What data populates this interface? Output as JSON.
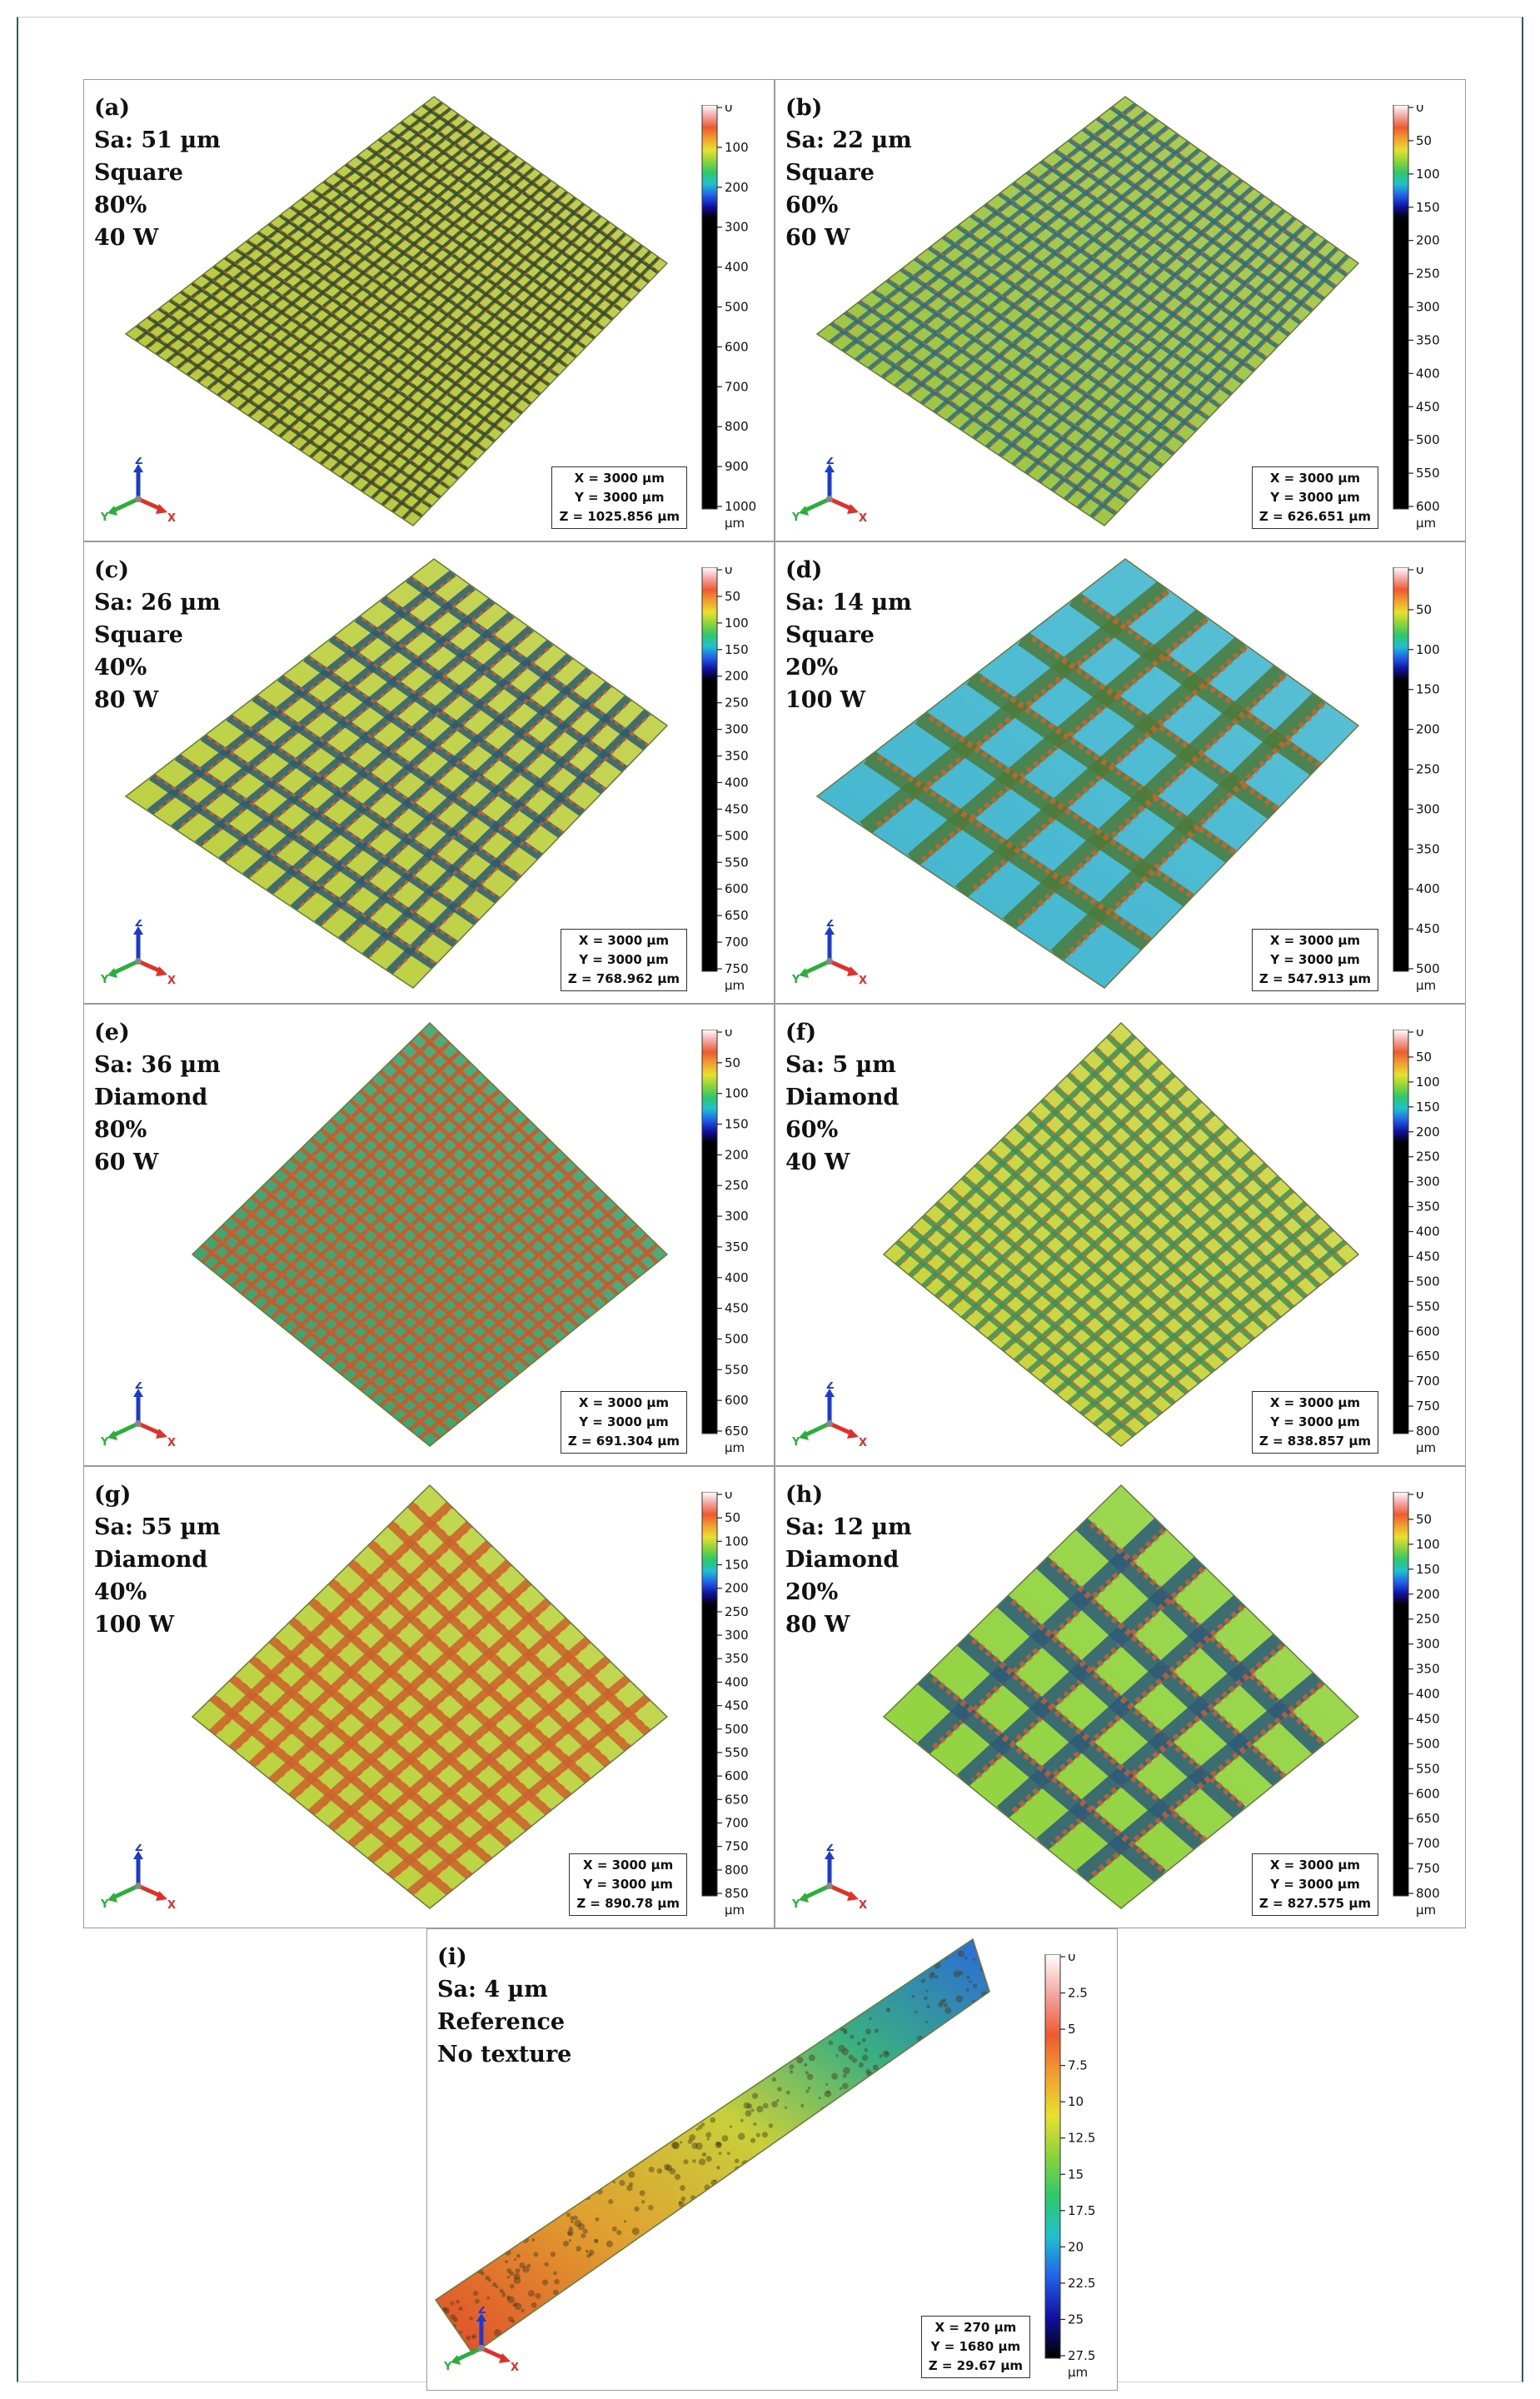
{
  "panels": [
    {
      "id": "a",
      "label": "(a)",
      "sa": "Sa: 51 µm",
      "pattern": "Square",
      "density": "80%",
      "power": "40 W",
      "x": "X = 3000 µm",
      "y": "Y = 3000 µm",
      "z": "Z = 1025.856 µm",
      "ticks": [
        "0",
        "100",
        "200",
        "300",
        "400",
        "500",
        "600",
        "700",
        "800",
        "900",
        "1000"
      ],
      "unit": "µm",
      "base_color": "#b6c83a",
      "line_color": "#2c4a2c",
      "spacing_count": 28,
      "orientation": "square"
    },
    {
      "id": "b",
      "label": "(b)",
      "sa": "Sa: 22 µm",
      "pattern": "Square",
      "density": "60%",
      "power": "60 W",
      "x": "X = 3000 µm",
      "y": "Y = 3000 µm",
      "z": "Z = 626.651 µm",
      "ticks": [
        "0",
        "50",
        "100",
        "150",
        "200",
        "250",
        "300",
        "350",
        "400",
        "450",
        "500",
        "550",
        "600"
      ],
      "unit": "µm",
      "base_color": "#9cc43f",
      "line_color": "#2a6f7a",
      "spacing_count": 22,
      "orientation": "square"
    },
    {
      "id": "c",
      "label": "(c)",
      "sa": "Sa: 26 µm",
      "pattern": "Square",
      "density": "40%",
      "power": "80 W",
      "x": "X = 3000 µm",
      "y": "Y = 3000 µm",
      "z": "Z = 768.962 µm",
      "ticks": [
        "0",
        "50",
        "100",
        "150",
        "200",
        "250",
        "300",
        "350",
        "400",
        "450",
        "500",
        "550",
        "600",
        "650",
        "700",
        "750"
      ],
      "unit": "µm",
      "base_color": "#bccf3c",
      "line_color": "#2b5a70",
      "spacing_count": 12,
      "orientation": "square"
    },
    {
      "id": "d",
      "label": "(d)",
      "sa": "Sa: 14 µm",
      "pattern": "Square",
      "density": "20%",
      "power": "100 W",
      "x": "X = 3000 µm",
      "y": "Y = 3000 µm",
      "z": "Z = 547.913 µm",
      "ticks": [
        "0",
        "50",
        "100",
        "150",
        "200",
        "250",
        "300",
        "350",
        "400",
        "450",
        "500"
      ],
      "unit": "µm",
      "base_color": "#3fb6cf",
      "line_color": "#4a7a3a",
      "spacing_count": 6,
      "orientation": "square"
    },
    {
      "id": "e",
      "label": "(e)",
      "sa": "Sa: 36 µm",
      "pattern": "Diamond",
      "density": "80%",
      "power": "60 W",
      "x": "X = 3000 µm",
      "y": "Y = 3000 µm",
      "z": "Z = 691.304 µm",
      "ticks": [
        "0",
        "50",
        "100",
        "150",
        "200",
        "250",
        "300",
        "350",
        "400",
        "450",
        "500",
        "550",
        "600",
        "650"
      ],
      "unit": "µm",
      "base_color": "#3aa06a",
      "line_color": "#c8582c",
      "spacing_count": 24,
      "orientation": "diamond"
    },
    {
      "id": "f",
      "label": "(f)",
      "sa": "Sa: 5 µm",
      "pattern": "Diamond",
      "density": "60%",
      "power": "40 W",
      "x": "X = 3000 µm",
      "y": "Y = 3000 µm",
      "z": "Z = 838.857 µm",
      "ticks": [
        "0",
        "50",
        "100",
        "150",
        "200",
        "250",
        "300",
        "350",
        "400",
        "450",
        "500",
        "550",
        "600",
        "650",
        "700",
        "750",
        "800"
      ],
      "unit": "µm",
      "base_color": "#c9d33a",
      "line_color": "#3d8f58",
      "spacing_count": 18,
      "orientation": "diamond"
    },
    {
      "id": "g",
      "label": "(g)",
      "sa": "Sa: 55 µm",
      "pattern": "Diamond",
      "density": "40%",
      "power": "100 W",
      "x": "X = 3000 µm",
      "y": "Y = 3000 µm",
      "z": "Z = 890.78 µm",
      "ticks": [
        "0",
        "50",
        "100",
        "150",
        "200",
        "250",
        "300",
        "350",
        "400",
        "450",
        "500",
        "550",
        "600",
        "650",
        "700",
        "750",
        "800",
        "850"
      ],
      "unit": "µm",
      "base_color": "#b9d23a",
      "line_color": "#c9622c",
      "spacing_count": 12,
      "orientation": "diamond"
    },
    {
      "id": "h",
      "label": "(h)",
      "sa": "Sa: 12 µm",
      "pattern": "Diamond",
      "density": "20%",
      "power": "80 W",
      "x": "X = 3000 µm",
      "y": "Y = 3000 µm",
      "z": "Z = 827.575 µm",
      "ticks": [
        "0",
        "50",
        "100",
        "150",
        "200",
        "250",
        "300",
        "350",
        "400",
        "450",
        "500",
        "550",
        "600",
        "650",
        "700",
        "750",
        "800"
      ],
      "unit": "µm",
      "base_color": "#8fd23a",
      "line_color": "#2b5a78",
      "spacing_count": 6,
      "orientation": "diamond"
    },
    {
      "id": "i",
      "label": "(i)",
      "sa": "Sa: 4 µm",
      "pattern": "Reference",
      "density": "No texture",
      "power": "",
      "x": "X = 270 µm",
      "y": "Y = 1680 µm",
      "z": "Z = 29.67 µm",
      "ticks": [
        "0",
        "2.5",
        "5",
        "7.5",
        "10",
        "12.5",
        "15",
        "17.5",
        "20",
        "22.5",
        "25",
        "27.5"
      ],
      "unit": "µm",
      "base_color": "#d9a23a",
      "line_color": "#4a4a2a",
      "spacing_count": 0,
      "orientation": "strip"
    }
  ],
  "axis_labels": {
    "x": "X",
    "y": "Y",
    "z": "Z"
  },
  "colormap": [
    "#ffffff",
    "#f3a6a0",
    "#ee5a30",
    "#f2a030",
    "#e8e030",
    "#8ad43a",
    "#2ec86a",
    "#20c0d0",
    "#2060e8",
    "#1010a0",
    "#000000"
  ]
}
